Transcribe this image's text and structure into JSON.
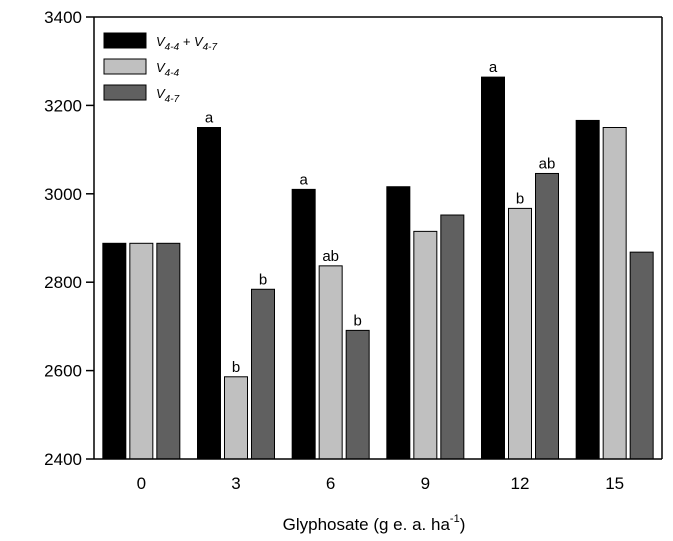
{
  "chart_data": {
    "type": "bar",
    "title": "",
    "xlabel": "Glyphosate (g e. a. ha-1)",
    "xlabel_parts": {
      "base": "Glyphosate (g e. a. ha",
      "sup": "-1",
      "close": ")"
    },
    "ylabel": "",
    "ylim": [
      2400,
      3400
    ],
    "yticks": [
      "2400",
      "2600",
      "2800",
      "3000",
      "3200",
      "3400"
    ],
    "categories": [
      "0",
      "3",
      "6",
      "9",
      "12",
      "15"
    ],
    "series": [
      {
        "name": "V4-4 + V4-7",
        "name_parts": [
          [
            "V",
            ""
          ],
          [
            "4-4",
            "sub"
          ],
          [
            " + V",
            ""
          ],
          [
            "4-7",
            "sub"
          ]
        ],
        "color": "#000000",
        "values": [
          2888,
          3150,
          3010,
          3016,
          3264,
          3166
        ],
        "annotations": [
          "",
          "a",
          "a",
          "",
          "a",
          ""
        ]
      },
      {
        "name": "V4-4",
        "name_parts": [
          [
            "V",
            ""
          ],
          [
            "4-4",
            "sub"
          ]
        ],
        "color": "#c0c0c0",
        "values": [
          2888,
          2586,
          2837,
          2915,
          2967,
          3150
        ],
        "annotations": [
          "",
          "b",
          "ab",
          "",
          "b",
          ""
        ]
      },
      {
        "name": "V4-7",
        "name_parts": [
          [
            "V",
            ""
          ],
          [
            "4-7",
            "sub"
          ]
        ],
        "color": "#606060",
        "values": [
          2888,
          2784,
          2691,
          2952,
          3046,
          2868
        ],
        "annotations": [
          "",
          "b",
          "b",
          "",
          "ab",
          ""
        ]
      }
    ],
    "grid": false,
    "legend_position": "top-left"
  }
}
